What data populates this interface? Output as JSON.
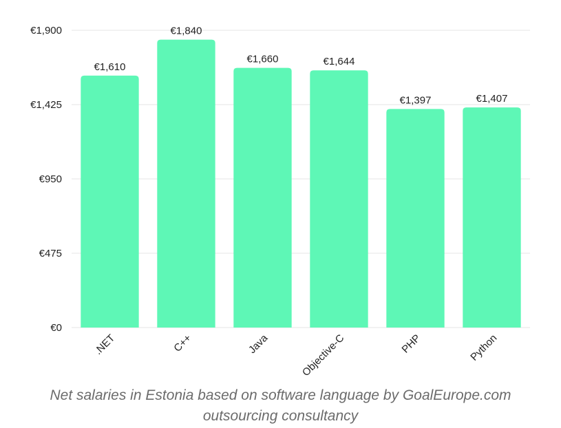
{
  "chart_data": {
    "type": "bar",
    "categories": [
      ".NET",
      "C++",
      "Java",
      "Objective-C",
      "PHP",
      "Python"
    ],
    "values": [
      1610,
      1840,
      1660,
      1644,
      1397,
      1407
    ],
    "value_labels": [
      "€1,610",
      "€1,840",
      "€1,660",
      "€1,644",
      "€1,397",
      "€1,407"
    ],
    "y_ticks": [
      0,
      475,
      950,
      1425,
      1900
    ],
    "y_tick_labels": [
      "€0",
      "€475",
      "€950",
      "€1,425",
      "€1,900"
    ],
    "ylim": [
      0,
      1900
    ],
    "grid": true,
    "legend": "none",
    "bar_color": "#5ef7b6",
    "grid_color": "#e6e6e6"
  },
  "caption": {
    "line1": "Net salaries in Estonia based on software language by GoalEurope.com",
    "line2": "outsourcing consultancy"
  }
}
